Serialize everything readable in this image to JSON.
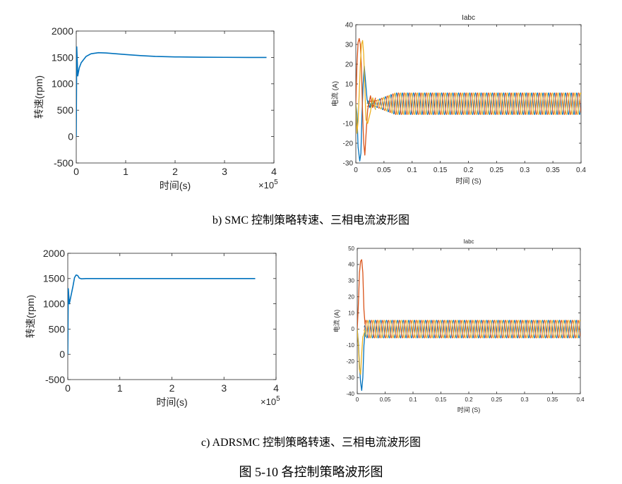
{
  "captions": {
    "b": "b)    SMC 控制策略转速、三相电流波形图",
    "c": "c)    ADRSMC 控制策略转速、三相电流波形图",
    "figure": "图 5-10  各控制策略波形图"
  },
  "colors": {
    "series1": "#0072BD",
    "series2": "#D95319",
    "series3": "#EDB120"
  },
  "chart_data": [
    {
      "id": "b-speed",
      "type": "line",
      "xlabel": "时间(s)",
      "ylabel": "转速(rpm)",
      "xmultiplier": "×10^5",
      "xlim": [
        0,
        4
      ],
      "ylim": [
        -500,
        2000
      ],
      "xticks": [
        0,
        1,
        2,
        3,
        4
      ],
      "yticks": [
        -500,
        0,
        500,
        1000,
        1500,
        2000
      ],
      "series": [
        {
          "values": [
            [
              0,
              0
            ],
            [
              0.01,
              1700
            ],
            [
              0.03,
              1150
            ],
            [
              0.06,
              1300
            ],
            [
              0.1,
              1400
            ],
            [
              0.2,
              1520
            ],
            [
              0.3,
              1570
            ],
            [
              0.45,
              1590
            ],
            [
              0.6,
              1585
            ],
            [
              0.8,
              1570
            ],
            [
              1.0,
              1555
            ],
            [
              1.3,
              1535
            ],
            [
              1.6,
              1520
            ],
            [
              2.0,
              1510
            ],
            [
              2.5,
              1505
            ],
            [
              3.0,
              1502
            ],
            [
              3.5,
              1500
            ],
            [
              3.85,
              1500
            ]
          ]
        }
      ]
    },
    {
      "id": "b-current",
      "type": "line",
      "title": "Iabc",
      "xlabel": "时间 (S)",
      "ylabel": "电流 (A)",
      "xlim": [
        0,
        0.4
      ],
      "ylim": [
        -30,
        40
      ],
      "xticks": [
        0,
        0.05,
        0.1,
        0.15,
        0.2,
        0.25,
        0.3,
        0.35,
        0.4
      ],
      "yticks": [
        -30,
        -20,
        -10,
        0,
        10,
        20,
        30,
        40
      ],
      "series": [
        {
          "values": [
            [
              0,
              0
            ],
            [
              0.002,
              -5
            ],
            [
              0.004,
              -22
            ],
            [
              0.007,
              -29
            ],
            [
              0.009,
              -25
            ],
            [
              0.011,
              -5
            ],
            [
              0.013,
              10
            ],
            [
              0.015,
              19
            ],
            [
              0.017,
              12
            ],
            [
              0.02,
              2
            ],
            [
              0.025,
              -2
            ],
            [
              0.03,
              2
            ],
            [
              0.035,
              -3
            ]
          ]
        },
        {
          "values": [
            [
              0,
              0
            ],
            [
              0.002,
              20
            ],
            [
              0.004,
              31
            ],
            [
              0.006,
              33
            ],
            [
              0.008,
              30
            ],
            [
              0.01,
              18
            ],
            [
              0.012,
              -5
            ],
            [
              0.014,
              -20
            ],
            [
              0.016,
              -26
            ],
            [
              0.018,
              -16
            ],
            [
              0.021,
              -3
            ],
            [
              0.026,
              4
            ],
            [
              0.03,
              -2
            ],
            [
              0.035,
              3
            ]
          ]
        },
        {
          "values": [
            [
              0,
              0
            ],
            [
              0.002,
              -15
            ],
            [
              0.004,
              -9
            ],
            [
              0.006,
              5
            ],
            [
              0.008,
              20
            ],
            [
              0.01,
              30
            ],
            [
              0.012,
              32
            ],
            [
              0.014,
              25
            ],
            [
              0.016,
              8
            ],
            [
              0.018,
              -8
            ],
            [
              0.021,
              -10
            ],
            [
              0.026,
              -4
            ],
            [
              0.03,
              3
            ],
            [
              0.035,
              -3
            ]
          ]
        }
      ],
      "steady": {
        "start": 0.02,
        "end": 0.4,
        "amplitude": 5.5,
        "frequency": 100,
        "ramp_end": 0.07
      }
    },
    {
      "id": "c-speed",
      "type": "line",
      "xlabel": "时间(s)",
      "ylabel": "转速(rpm)",
      "xmultiplier": "×10^5",
      "xlim": [
        0,
        4
      ],
      "ylim": [
        -500,
        2000
      ],
      "xticks": [
        0,
        1,
        2,
        3,
        4
      ],
      "yticks": [
        -500,
        0,
        500,
        1000,
        1500,
        2000
      ],
      "series": [
        {
          "values": [
            [
              0,
              0
            ],
            [
              0.01,
              1300
            ],
            [
              0.03,
              1000
            ],
            [
              0.06,
              1150
            ],
            [
              0.1,
              1350
            ],
            [
              0.13,
              1520
            ],
            [
              0.16,
              1570
            ],
            [
              0.19,
              1560
            ],
            [
              0.22,
              1510
            ],
            [
              0.26,
              1495
            ],
            [
              0.35,
              1500
            ],
            [
              1.0,
              1500
            ],
            [
              2.0,
              1500
            ],
            [
              3.0,
              1500
            ],
            [
              3.6,
              1500
            ]
          ]
        }
      ]
    },
    {
      "id": "c-current",
      "type": "line",
      "title": "Iabc",
      "xlabel": "时间 (S)",
      "ylabel": "电流 (A)",
      "xlim": [
        0,
        0.4
      ],
      "ylim": [
        -40,
        50
      ],
      "xticks": [
        0,
        0.05,
        0.1,
        0.15,
        0.2,
        0.25,
        0.3,
        0.35,
        0.4
      ],
      "yticks": [
        -40,
        -30,
        -20,
        -10,
        0,
        10,
        20,
        30,
        40,
        50
      ],
      "series": [
        {
          "values": [
            [
              0,
              0
            ],
            [
              0.002,
              -8
            ],
            [
              0.004,
              -22
            ],
            [
              0.006,
              -33
            ],
            [
              0.008,
              -38
            ],
            [
              0.01,
              -30
            ],
            [
              0.012,
              -10
            ],
            [
              0.014,
              -2
            ]
          ]
        },
        {
          "values": [
            [
              0,
              0
            ],
            [
              0.002,
              15
            ],
            [
              0.004,
              35
            ],
            [
              0.006,
              42
            ],
            [
              0.008,
              43
            ],
            [
              0.01,
              35
            ],
            [
              0.012,
              12
            ],
            [
              0.014,
              3
            ]
          ]
        },
        {
          "values": [
            [
              0,
              0
            ],
            [
              0.002,
              -10
            ],
            [
              0.004,
              -25
            ],
            [
              0.006,
              -28
            ],
            [
              0.008,
              -15
            ],
            [
              0.01,
              -5
            ],
            [
              0.012,
              -3
            ],
            [
              0.014,
              -1
            ]
          ]
        }
      ],
      "steady": {
        "start": 0.012,
        "end": 0.4,
        "amplitude": 5.5,
        "frequency": 100,
        "ramp_end": 0.015
      }
    }
  ]
}
